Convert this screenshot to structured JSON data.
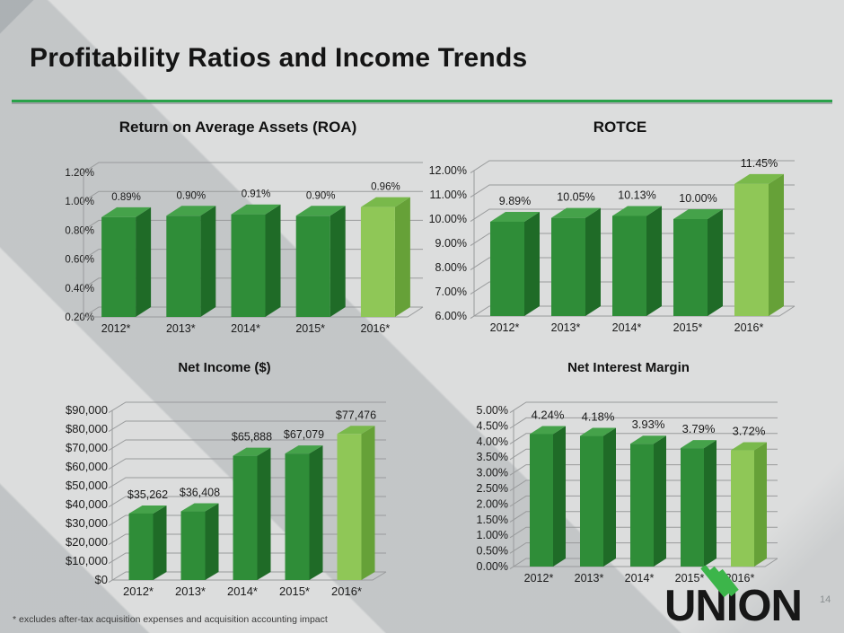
{
  "slide": {
    "title": "Profitability Ratios and Income Trends",
    "footnote": "* excludes after-tax acquisition expenses and acquisition accounting impact",
    "page_number": "14",
    "logo_text": "UNION"
  },
  "colors": {
    "accent_green": "#2aa24a",
    "logo_green": "#3cb54a",
    "logo_text_color": "#171717",
    "text": "#1a1a1a",
    "gridline": "#999b9c",
    "background": "#dcdddd",
    "background_stripe": "#ced1d3",
    "page_number_color": "#8a8f91",
    "bar": {
      "front": "#2f8d38",
      "side": "#1f6b27",
      "top": "#45a24a"
    },
    "bar_highlight": {
      "front": "#8fc757",
      "side": "#66a138",
      "top": "#79b94b"
    }
  },
  "chart_data": [
    {
      "type": "bar",
      "style": "3d",
      "title": "Return on Average Assets (ROA)",
      "categories": [
        "2012*",
        "2013*",
        "2014*",
        "2015*",
        "2016*"
      ],
      "values": [
        0.89,
        0.9,
        0.91,
        0.9,
        0.96
      ],
      "value_labels": [
        "0.89%",
        "0.90%",
        "0.91%",
        "0.90%",
        "0.96%"
      ],
      "ylim": [
        0.2,
        1.2
      ],
      "yticks": [
        "1.20%",
        "1.00%",
        "0.80%",
        "0.60%",
        "0.40%",
        "0.20%"
      ],
      "grid": true,
      "legend": false,
      "highlight_index": 4
    },
    {
      "type": "bar",
      "style": "3d",
      "title": "ROTCE",
      "categories": [
        "2012*",
        "2013*",
        "2014*",
        "2015*",
        "2016*"
      ],
      "values": [
        9.89,
        10.05,
        10.13,
        10.0,
        11.45
      ],
      "value_labels": [
        "9.89%",
        "10.05%",
        "10.13%",
        "10.00%",
        "11.45%"
      ],
      "ylim": [
        6.0,
        12.0
      ],
      "yticks": [
        "12.00%",
        "11.00%",
        "10.00%",
        "9.00%",
        "8.00%",
        "7.00%",
        "6.00%"
      ],
      "grid": true,
      "legend": false,
      "highlight_index": 4
    },
    {
      "type": "bar",
      "style": "3d",
      "title": "Net Income ($)",
      "categories": [
        "2012*",
        "2013*",
        "2014*",
        "2015*",
        "2016*"
      ],
      "values": [
        35262,
        36408,
        65888,
        67079,
        77476
      ],
      "value_labels": [
        "$35,262",
        "$36,408",
        "$65,888",
        "$67,079",
        "$77,476"
      ],
      "ylim": [
        0,
        90000
      ],
      "yticks": [
        "$90,000",
        "$80,000",
        "$70,000",
        "$60,000",
        "$50,000",
        "$40,000",
        "$30,000",
        "$20,000",
        "$10,000",
        "$0"
      ],
      "grid": true,
      "legend": false,
      "highlight_index": 4
    },
    {
      "type": "bar",
      "style": "3d",
      "title": "Net Interest Margin",
      "categories": [
        "2012*",
        "2013*",
        "2014*",
        "2015*",
        "2016*"
      ],
      "values": [
        4.24,
        4.18,
        3.93,
        3.79,
        3.72
      ],
      "value_labels": [
        "4.24%",
        "4.18%",
        "3.93%",
        "3.79%",
        "3.72%"
      ],
      "ylim": [
        0.0,
        5.0
      ],
      "yticks": [
        "5.00%",
        "4.50%",
        "4.00%",
        "3.50%",
        "3.00%",
        "2.50%",
        "2.00%",
        "1.50%",
        "1.00%",
        "0.50%",
        "0.00%"
      ],
      "grid": true,
      "legend": false,
      "highlight_index": 4
    }
  ]
}
